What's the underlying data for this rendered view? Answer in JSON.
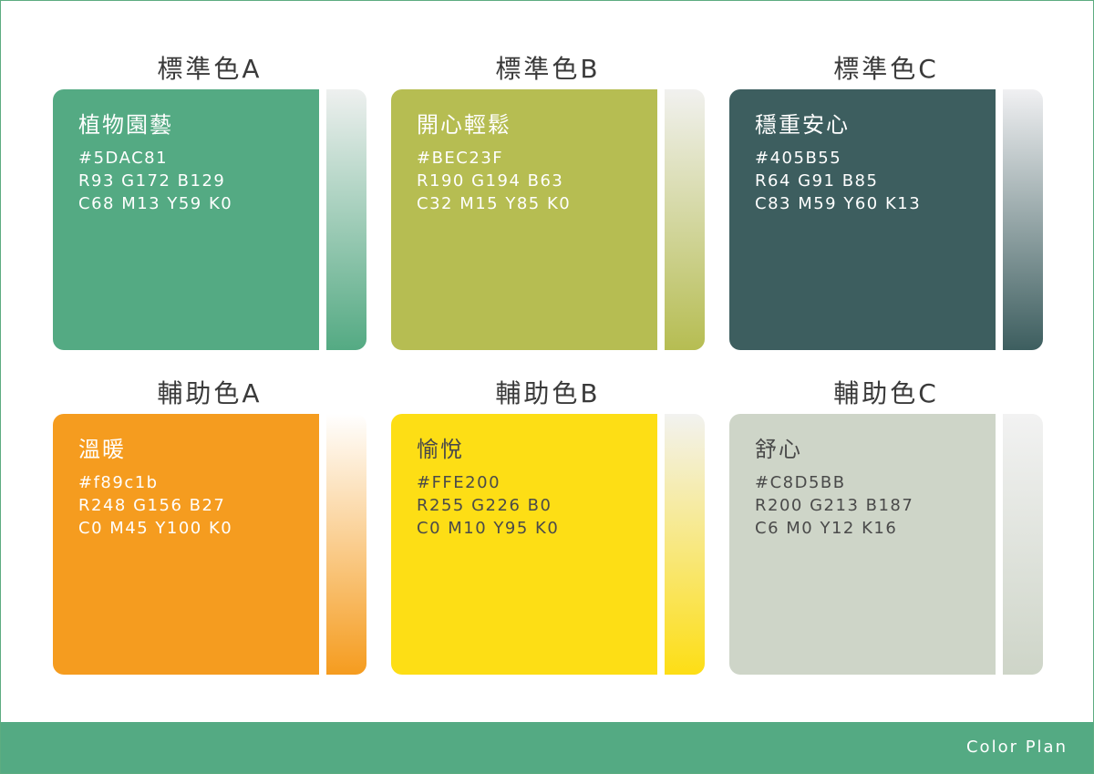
{
  "colors": [
    {
      "title": "標準色A",
      "name": "植物園藝",
      "hex": "#5DAC81",
      "rgb": "R93 G172 B129",
      "cmyk": "C68 M13 Y59 K0",
      "color": "#54AA83",
      "gradient_top": "#EEF0EF",
      "text_color": "#ffffff"
    },
    {
      "title": "標準色B",
      "name": "開心輕鬆",
      "hex": "#BEC23F",
      "rgb": "R190 G194 B63",
      "cmyk": "C32 M15 Y85 K0",
      "color": "#B6BD52",
      "gradient_top": "#F1F1EF",
      "text_color": "#ffffff"
    },
    {
      "title": "標準色C",
      "name": "穩重安心",
      "hex": "#405B55",
      "rgb": "R64 G91 B85",
      "cmyk": "C83 M59 Y60 K13",
      "color": "#3D5E5F",
      "gradient_top": "#F0F0F2",
      "text_color": "#ffffff"
    },
    {
      "title": "輔助色A",
      "name": "溫暖",
      "hex": "#f89c1b",
      "rgb": "R248 G156 B27",
      "cmyk": "C0 M45 Y100 K0",
      "color": "#F59C1F",
      "gradient_top": "#FFFFFF",
      "text_color": "#ffffff"
    },
    {
      "title": "輔助色B",
      "name": "愉悅",
      "hex": "#FFE200",
      "rgb": "R255 G226 B0",
      "cmyk": "C0 M10 Y95 K0",
      "color": "#FDDE15",
      "gradient_top": "#F2F2F0",
      "text_color": "#4a4a4a"
    },
    {
      "title": "輔助色C",
      "name": "舒心",
      "hex": "#C8D5BB",
      "rgb": "R200 G213 B187",
      "cmyk": "C6 M0 Y12 K16",
      "color": "#CED5C8",
      "gradient_top": "#F2F2F2",
      "text_color": "#4a4a4a"
    }
  ],
  "footer": {
    "label": "Color Plan",
    "color": "#54AA83"
  }
}
